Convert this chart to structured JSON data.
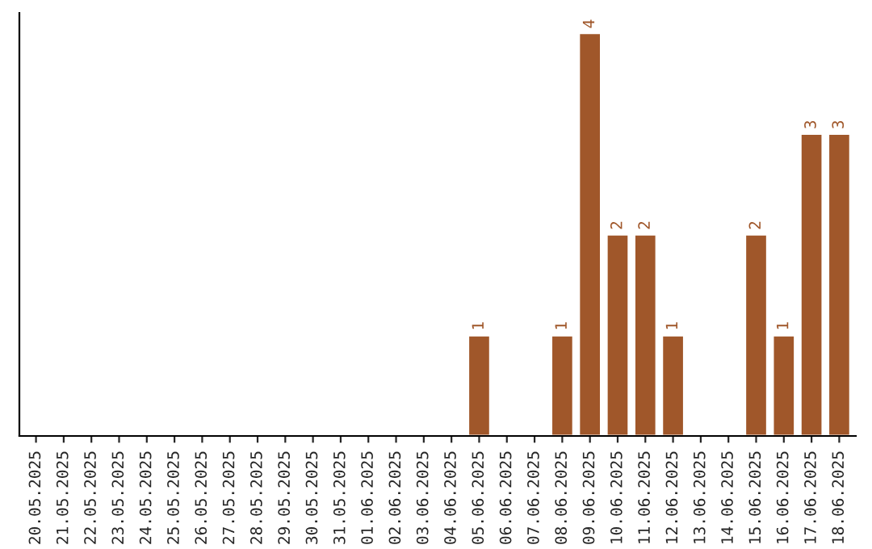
{
  "chart_data": {
    "type": "bar",
    "categories": [
      "20.05.2025",
      "21.05.2025",
      "22.05.2025",
      "23.05.2025",
      "24.05.2025",
      "25.05.2025",
      "26.05.2025",
      "27.05.2025",
      "28.05.2025",
      "29.05.2025",
      "30.05.2025",
      "31.05.2025",
      "01.06.2025",
      "02.06.2025",
      "03.06.2025",
      "04.06.2025",
      "05.06.2025",
      "06.06.2025",
      "07.06.2025",
      "08.06.2025",
      "09.06.2025",
      "10.06.2025",
      "11.06.2025",
      "12.06.2025",
      "13.06.2025",
      "14.06.2025",
      "15.06.2025",
      "16.06.2025",
      "17.06.2025",
      "18.06.2025"
    ],
    "values": [
      null,
      null,
      null,
      null,
      null,
      null,
      null,
      null,
      null,
      null,
      null,
      null,
      null,
      null,
      null,
      null,
      1,
      null,
      null,
      1,
      4,
      2,
      2,
      1,
      null,
      null,
      2,
      1,
      3,
      3
    ],
    "value_labels": [
      null,
      null,
      null,
      null,
      null,
      null,
      null,
      null,
      null,
      null,
      null,
      null,
      null,
      null,
      null,
      null,
      "1",
      null,
      null,
      "1",
      "4",
      "2",
      "2",
      "1",
      null,
      null,
      "2",
      "1",
      "3",
      "3"
    ],
    "color": "#a0572a",
    "tick_labels": "x",
    "grid": false,
    "legend": false
  }
}
